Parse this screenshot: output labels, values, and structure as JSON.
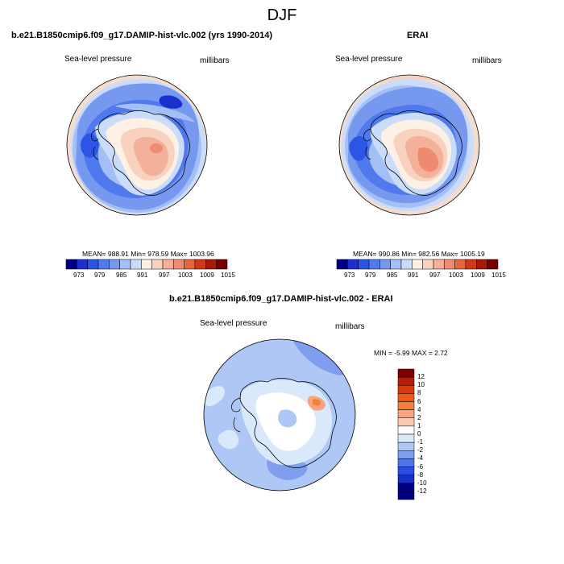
{
  "main_title": "DJF",
  "panels": [
    {
      "title": "b.e21.B1850cmip6.f09_g17.DAMIP-hist-vlc.002 (yrs 1990-2014)",
      "left_label": "Sea-level pressure",
      "right_label": "millibars",
      "stats": "MEAN= 988.91   Min= 978.59   Max= 1003.96",
      "colorbar_ticks": [
        "973",
        "979",
        "985",
        "991",
        "997",
        "1003",
        "1009",
        "1015"
      ]
    },
    {
      "title": "ERAI",
      "left_label": "Sea-level pressure",
      "right_label": "millibars",
      "stats": "MEAN= 990.86   Min= 982.56   Max= 1005.19",
      "colorbar_ticks": [
        "973",
        "979",
        "985",
        "991",
        "997",
        "1003",
        "1009",
        "1015"
      ]
    },
    {
      "title": "b.e21.B1850cmip6.f09_g17.DAMIP-hist-vlc.002 - ERAI",
      "left_label": "Sea-level pressure",
      "right_label": "millibars",
      "stats": "MIN =  -5.99 MAX =   2.72",
      "colorbar_ticks": [
        "12",
        "10",
        "8",
        "6",
        "4",
        "2",
        "1",
        "0",
        "-1",
        "-2",
        "-4",
        "-6",
        "-8",
        "-10",
        "-12"
      ]
    }
  ],
  "colors": {
    "abs_scale": [
      "#00007f",
      "#1a2fd0",
      "#2a55e6",
      "#4f79ec",
      "#7699ef",
      "#a3bff5",
      "#cbdcfa",
      "#fdf0e4",
      "#f9d2bf",
      "#f3b09a",
      "#ee8a70",
      "#e4653e",
      "#d13a18",
      "#a8180b",
      "#7a0000"
    ],
    "diff_scale": [
      "#7f0000",
      "#b81a0a",
      "#dc3a0c",
      "#ef5a18",
      "#f57f3e",
      "#f7a37d",
      "#f9c9b2",
      "#ffffff",
      "#d9e8fb",
      "#aec7f4",
      "#7f9fee",
      "#4f75e9",
      "#2a4fe0",
      "#1431c8",
      "#00007f"
    ]
  }
}
